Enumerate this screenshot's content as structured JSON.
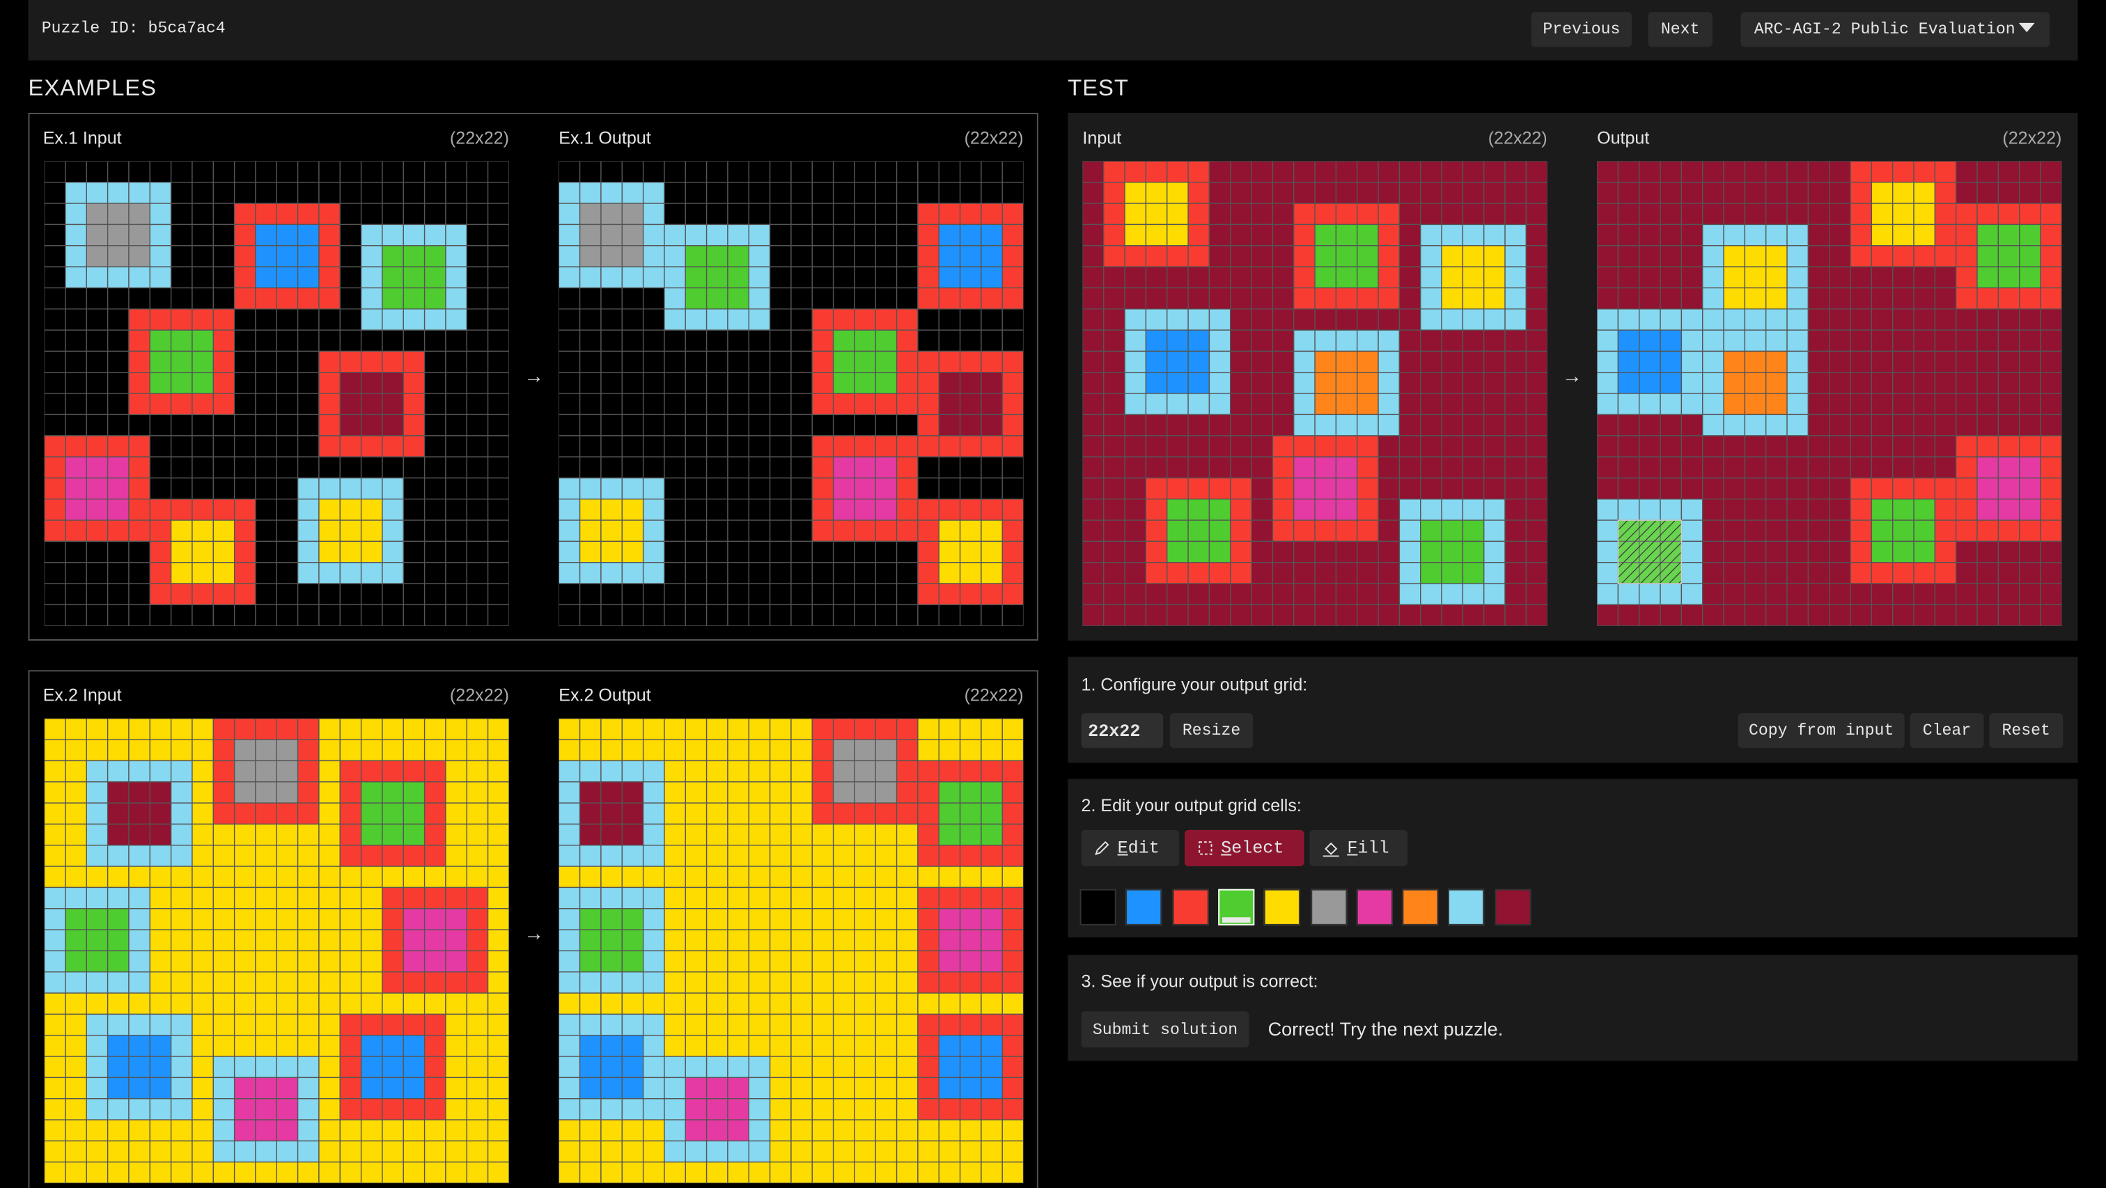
{
  "header": {
    "puzzle_id": "Puzzle ID: b5ca7ac4",
    "previous": "Previous",
    "next": "Next",
    "dataset": "ARC-AGI-2 Public Evaluation"
  },
  "palette": [
    "#000000",
    "#1E93FF",
    "#F93C31",
    "#4FCC30",
    "#FFDC00",
    "#999999",
    "#E53AA3",
    "#FF851B",
    "#87D8F1",
    "#921231"
  ],
  "examples": {
    "title": "EXAMPLES",
    "pairs": [
      {
        "input": {
          "label": "Ex.1 Input",
          "size_label": "(22x22)",
          "height": 22,
          "width": 22,
          "background": 0,
          "squares": [
            [
              1,
              1,
              8,
              5
            ],
            [
              2,
              9,
              2,
              1
            ],
            [
              3,
              15,
              8,
              3
            ],
            [
              7,
              4,
              2,
              3
            ],
            [
              9,
              13,
              2,
              9
            ],
            [
              13,
              0,
              2,
              6
            ],
            [
              15,
              12,
              8,
              4
            ],
            [
              16,
              5,
              2,
              4
            ]
          ]
        },
        "arrow": "→",
        "output": {
          "label": "Ex.1 Output",
          "size_label": "(22x22)",
          "height": 22,
          "width": 22,
          "background": 0,
          "squares": [
            [
              1,
              0,
              8,
              5
            ],
            [
              3,
              5,
              8,
              3
            ],
            [
              2,
              17,
              2,
              1
            ],
            [
              7,
              12,
              2,
              3
            ],
            [
              9,
              17,
              2,
              9
            ],
            [
              13,
              12,
              2,
              6
            ],
            [
              16,
              17,
              2,
              4
            ],
            [
              15,
              0,
              8,
              4
            ]
          ]
        }
      },
      {
        "input": {
          "label": "Ex.2 Input",
          "size_label": "(22x22)",
          "height": 22,
          "width": 22,
          "background": 4,
          "squares": [
            [
              2,
              2,
              8,
              9
            ],
            [
              0,
              8,
              2,
              5
            ],
            [
              2,
              14,
              2,
              3
            ],
            [
              8,
              0,
              8,
              3
            ],
            [
              8,
              16,
              2,
              6
            ],
            [
              14,
              2,
              8,
              1
            ],
            [
              14,
              14,
              2,
              1
            ],
            [
              16,
              8,
              8,
              6
            ]
          ]
        },
        "arrow": "→",
        "output": {
          "label": "Ex.2 Output",
          "size_label": "(22x22)",
          "height": 22,
          "width": 22,
          "background": 4,
          "squares": [
            [
              2,
              0,
              8,
              9
            ],
            [
              0,
              12,
              2,
              5
            ],
            [
              2,
              17,
              2,
              3
            ],
            [
              8,
              0,
              8,
              3
            ],
            [
              8,
              17,
              2,
              6
            ],
            [
              14,
              0,
              8,
              1
            ],
            [
              14,
              17,
              2,
              1
            ],
            [
              16,
              5,
              8,
              6
            ]
          ]
        }
      }
    ]
  },
  "test": {
    "title": "TEST",
    "input": {
      "label": "Input",
      "size_label": "(22x22)",
      "height": 22,
      "width": 22,
      "background": 9,
      "squares": [
        [
          0,
          1,
          2,
          4
        ],
        [
          2,
          10,
          2,
          3
        ],
        [
          3,
          16,
          8,
          4
        ],
        [
          7,
          2,
          8,
          1
        ],
        [
          8,
          10,
          8,
          7
        ],
        [
          13,
          9,
          2,
          6
        ],
        [
          15,
          3,
          2,
          3
        ],
        [
          16,
          15,
          8,
          3
        ]
      ]
    },
    "arrow": "→",
    "output": {
      "label": "Output",
      "size_label": "(22x22)",
      "height": 22,
      "width": 22,
      "background": 9,
      "squares": [
        [
          0,
          12,
          2,
          4
        ],
        [
          2,
          17,
          2,
          3
        ],
        [
          3,
          5,
          8,
          4
        ],
        [
          7,
          0,
          8,
          1
        ],
        [
          8,
          5,
          8,
          7
        ],
        [
          13,
          17,
          2,
          6
        ],
        [
          15,
          12,
          2,
          3
        ],
        [
          16,
          0,
          8,
          3
        ]
      ],
      "selection": [
        17,
        1,
        19,
        3
      ]
    }
  },
  "controls": {
    "step1": {
      "label": "1. Configure your output grid:",
      "size_value": "22x22",
      "resize": "Resize",
      "copy": "Copy from input",
      "clear": "Clear",
      "reset": "Reset"
    },
    "step2": {
      "label": "2. Edit your output grid cells:",
      "tools": [
        "Edit",
        "Select",
        "Fill"
      ],
      "active_tool": 1,
      "selected_color": 3
    },
    "step3": {
      "label": "3. See if your output is correct:",
      "submit": "Submit solution",
      "status": "Correct! Try the next puzzle."
    }
  }
}
